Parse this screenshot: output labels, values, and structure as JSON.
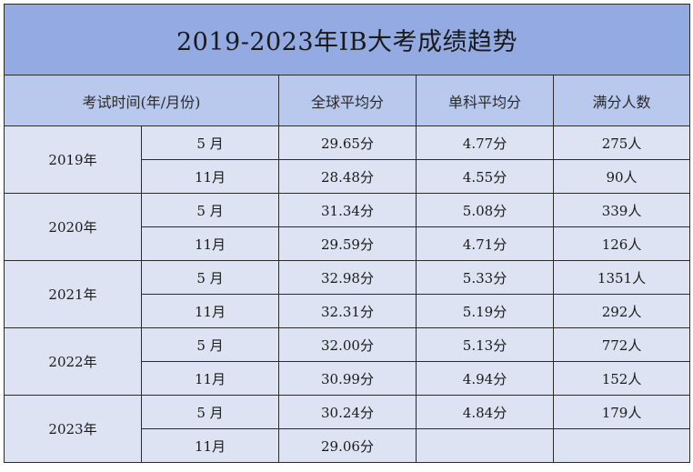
{
  "title": "2019-2023年IB大考成绩趋势",
  "headers": {
    "exam_time": "考试时间(年/月份)",
    "global_avg": "全球平均分",
    "subject_avg": "单科平均分",
    "full_score_count": "满分人数"
  },
  "rows": [
    {
      "year": "2019年",
      "sessions": [
        {
          "month": "5 月",
          "global_avg": "29.65分",
          "subject_avg": "4.77分",
          "full_score": "275人"
        },
        {
          "month": "11月",
          "global_avg": "28.48分",
          "subject_avg": "4.55分",
          "full_score": "90人"
        }
      ]
    },
    {
      "year": "2020年",
      "sessions": [
        {
          "month": "5 月",
          "global_avg": "31.34分",
          "subject_avg": "5.08分",
          "full_score": "339人"
        },
        {
          "month": "11月",
          "global_avg": "29.59分",
          "subject_avg": "4.71分",
          "full_score": "126人"
        }
      ]
    },
    {
      "year": "2021年",
      "sessions": [
        {
          "month": "5 月",
          "global_avg": "32.98分",
          "subject_avg": "5.33分",
          "full_score": "1351人"
        },
        {
          "month": "11月",
          "global_avg": "32.31分",
          "subject_avg": "5.19分",
          "full_score": "292人"
        }
      ]
    },
    {
      "year": "2022年",
      "sessions": [
        {
          "month": "5 月",
          "global_avg": "32.00分",
          "subject_avg": "5.13分",
          "full_score": "772人"
        },
        {
          "month": "11月",
          "global_avg": "30.99分",
          "subject_avg": "4.94分",
          "full_score": "152人"
        }
      ]
    },
    {
      "year": "2023年",
      "sessions": [
        {
          "month": "5 月",
          "global_avg": "30.24分",
          "subject_avg": "4.84分",
          "full_score": "179人"
        },
        {
          "month": "11月",
          "global_avg": "29.06分",
          "subject_avg": "",
          "full_score": ""
        }
      ]
    }
  ],
  "colors": {
    "title_bg": "#93abe2",
    "header_bg": "#b9c9ee",
    "body_bg": "#dde3f3",
    "border": "#2b2b2b"
  }
}
